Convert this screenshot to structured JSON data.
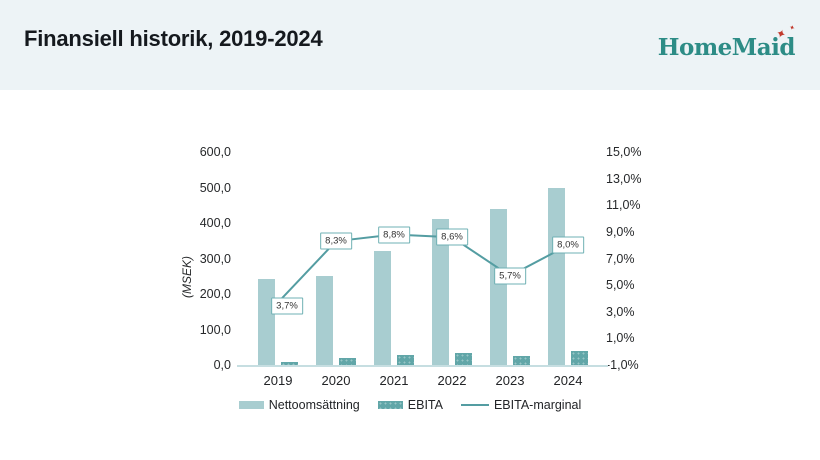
{
  "header": {
    "title": "Finansiell historik, 2019-2024",
    "logo": {
      "text": "HomeMaid",
      "star_icon": "✦",
      "text_color": "#2d8c86",
      "star_color": "#c23b2e",
      "band_background": "#edf3f6"
    }
  },
  "chart_data": {
    "type": "combo-bar-line",
    "categories": [
      "2019",
      "2020",
      "2021",
      "2022",
      "2023",
      "2024"
    ],
    "series": [
      {
        "name": "Nettoomsättning",
        "type": "bar",
        "axis": "left",
        "values": [
          243,
          252,
          322,
          410,
          439,
          500
        ],
        "color": "#a8cdd0"
      },
      {
        "name": "EBITA",
        "type": "bar",
        "axis": "left",
        "values": [
          9,
          21,
          28,
          35,
          25,
          40
        ],
        "color": "#61a6a8"
      },
      {
        "name": "EBITA-marginal",
        "type": "line",
        "axis": "right",
        "values": [
          3.7,
          8.3,
          8.8,
          8.6,
          5.7,
          8.0
        ],
        "point_labels": [
          "3,7%",
          "8,3%",
          "8,8%",
          "8,6%",
          "5,7%",
          "8,0%"
        ],
        "color": "#549da2"
      }
    ],
    "ylabel_left": "(MSEK)",
    "left_axis": {
      "min": 0,
      "max": 600,
      "ticks": [
        "600,0",
        "500,0",
        "400,0",
        "300,0",
        "200,0",
        "100,0",
        "0,0"
      ]
    },
    "right_axis": {
      "min": -1,
      "max": 15,
      "ticks": [
        "15,0%",
        "13,0%",
        "11,0%",
        "9,0%",
        "7,0%",
        "5,0%",
        "3,0%",
        "1,0%",
        "-1,0%"
      ]
    },
    "grid": false,
    "legend_position": "bottom-center",
    "legend": [
      {
        "label": "Nettoomsättning",
        "swatch": "bar-light"
      },
      {
        "label": "EBITA",
        "swatch": "bar-dark"
      },
      {
        "label": "EBITA-marginal",
        "swatch": "line"
      }
    ]
  }
}
